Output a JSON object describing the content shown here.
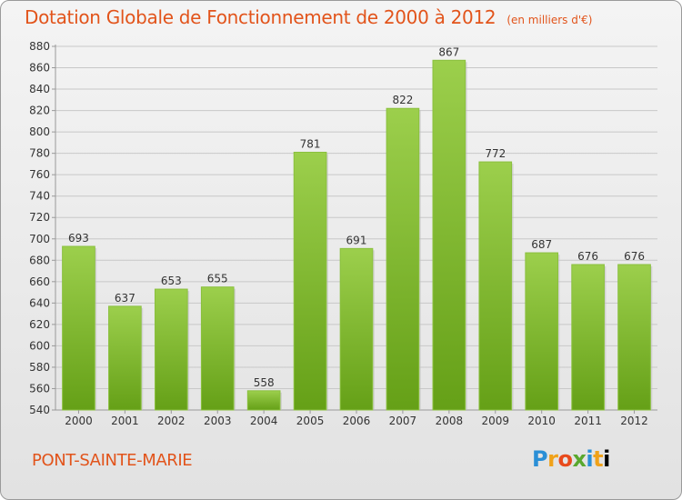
{
  "title": "Dotation Globale de Fonctionnement de 2000 à 2012",
  "subtitle": "(en milliers d'€)",
  "commune": "PONT-SAINTE-MARIE",
  "logo": [
    "P",
    "r",
    "o",
    "x",
    "i",
    "t",
    "i"
  ],
  "colors": {
    "bar_top": "#9ccf4c",
    "bar_bottom": "#65a017",
    "title": "#e2541b"
  },
  "chart_data": {
    "type": "bar",
    "title": "Dotation Globale de Fonctionnement de 2000 à 2012",
    "subtitle": "(en milliers d'€)",
    "xlabel": "",
    "ylabel": "",
    "categories": [
      "2000",
      "2001",
      "2002",
      "2003",
      "2004",
      "2005",
      "2006",
      "2007",
      "2008",
      "2009",
      "2010",
      "2011",
      "2012"
    ],
    "values": [
      693,
      637,
      653,
      655,
      558,
      781,
      691,
      822,
      867,
      772,
      687,
      676,
      676
    ],
    "ylim": [
      540,
      880
    ],
    "yticks": [
      540,
      560,
      580,
      600,
      620,
      640,
      660,
      680,
      700,
      720,
      740,
      760,
      780,
      800,
      820,
      840,
      860,
      880
    ],
    "grid": true
  }
}
